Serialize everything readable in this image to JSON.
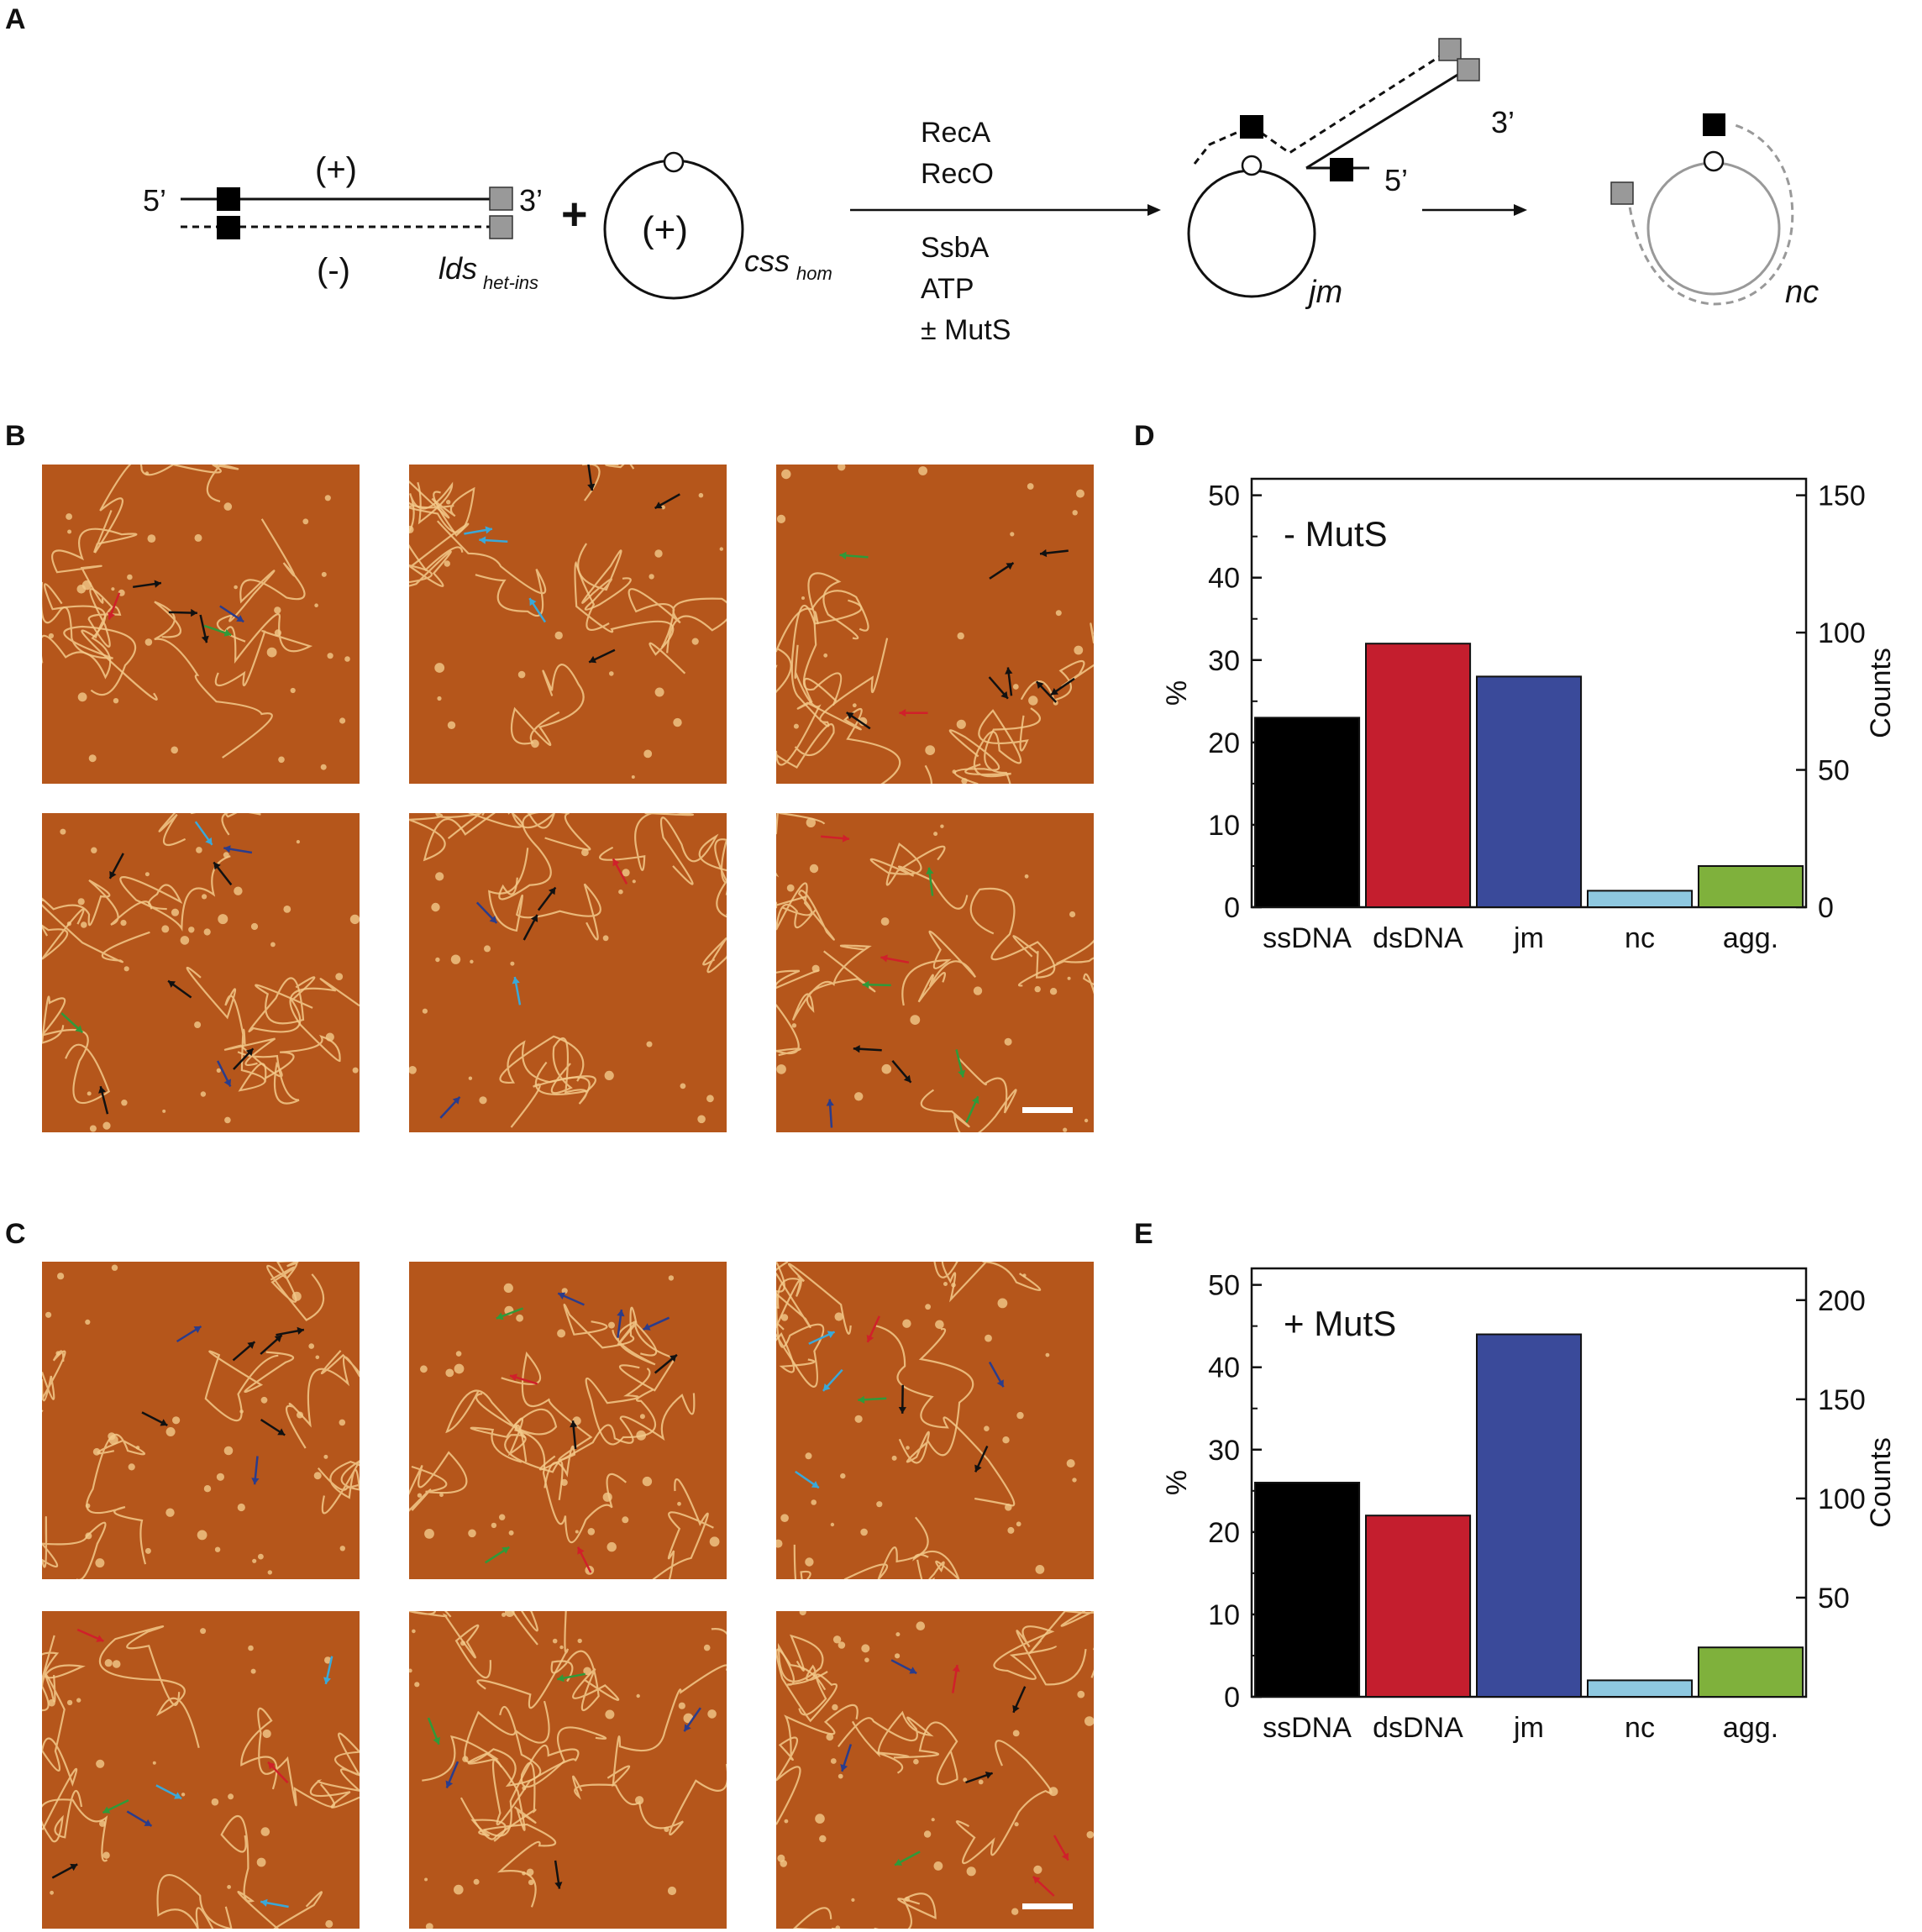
{
  "panels": {
    "A": "A",
    "B": "B",
    "C": "C",
    "D": "D",
    "E": "E"
  },
  "scheme": {
    "plus_strand": "(+)",
    "minus_strand": "(-)",
    "five_prime": "5’",
    "three_prime": "3’",
    "lds_main": "lds",
    "lds_sub": "het-ins",
    "plus_sign": "+",
    "circle_label": "(+)",
    "css_main": "css",
    "css_sub": "hom",
    "reagents_top": [
      "RecA",
      "RecO"
    ],
    "reagents_bottom": [
      "SsbA",
      "ATP",
      "± MutS"
    ],
    "jm_label": "jm",
    "jm_three_prime": "3’",
    "jm_five_prime": "5’",
    "nc_label": "nc"
  },
  "chart_data": [
    {
      "type": "bar",
      "panel": "D",
      "annotation": "- MutS",
      "categories": [
        "ssDNA",
        "dsDNA",
        "jm",
        "nc",
        "agg."
      ],
      "values": [
        23,
        32,
        28,
        2,
        5
      ],
      "colors": [
        "#000000",
        "#c41e2e",
        "#3a4a9a",
        "#8ec8e0",
        "#7fb13c"
      ],
      "ylabel": "%",
      "ylim": [
        0,
        52
      ],
      "yticks": [
        0,
        10,
        20,
        30,
        40,
        50
      ],
      "y2label": "Counts",
      "y2lim": [
        0,
        156
      ],
      "y2ticks": [
        0,
        50,
        100,
        150
      ]
    },
    {
      "type": "bar",
      "panel": "E",
      "annotation": "+ MutS",
      "categories": [
        "ssDNA",
        "dsDNA",
        "jm",
        "nc",
        "agg."
      ],
      "values": [
        26,
        22,
        44,
        2,
        6
      ],
      "colors": [
        "#000000",
        "#c41e2e",
        "#3a4a9a",
        "#8ec8e0",
        "#7fb13c"
      ],
      "ylabel": "%",
      "ylim": [
        0,
        52
      ],
      "yticks": [
        0,
        10,
        20,
        30,
        40,
        50
      ],
      "y2label": "Counts",
      "y2lim": [
        0,
        216
      ],
      "y2ticks": [
        50,
        100,
        150,
        200
      ]
    }
  ],
  "afm_colors": {
    "background": "#b5561b",
    "strand": "#f3c98a",
    "arrow_black": "#111111",
    "arrow_red": "#d0202a",
    "arrow_blue": "#2a3c8c",
    "arrow_green": "#2f9a3a",
    "arrow_cyan": "#3aa8d8"
  }
}
